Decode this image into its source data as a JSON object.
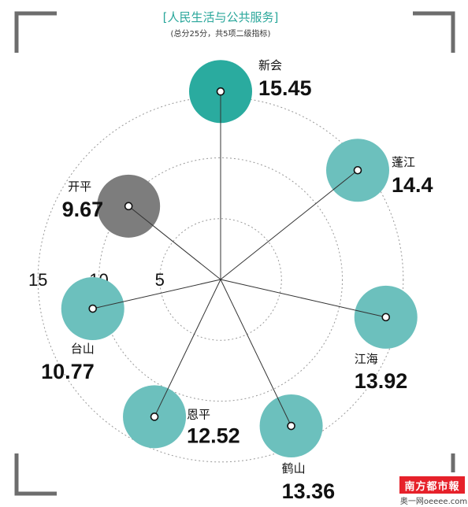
{
  "header": {
    "title": "[人民生活与公共服务]",
    "subtitle": "(总分25分，共5项二级指标)"
  },
  "chart_data": {
    "type": "radar",
    "title": "[人民生活与公共服务]",
    "subtitle": "(总分25分，共5项二级指标)",
    "ring_labels": [
      "15",
      "10",
      "5"
    ],
    "ring_values": [
      15,
      10,
      5
    ],
    "max": 16.5,
    "categories": [
      "新会",
      "蓬江",
      "江海",
      "鹤山",
      "恩平",
      "台山",
      "开平"
    ],
    "values": [
      15.45,
      14.4,
      13.92,
      13.36,
      12.52,
      10.77,
      9.67
    ],
    "value_labels": [
      "15.45",
      "14.4",
      "13.92",
      "13.36",
      "12.52",
      "10.77",
      "9.67"
    ],
    "highlight": {
      "top": "新会",
      "bottom": "开平"
    },
    "colors": {
      "top": "#2aab9f",
      "normal": "#6cc0bd",
      "bottom": "#7d7d7d",
      "grid": "#999999",
      "spoke": "#333333"
    }
  },
  "brand": {
    "name": "南方都市報",
    "site": "奥一网oeeee.com"
  }
}
